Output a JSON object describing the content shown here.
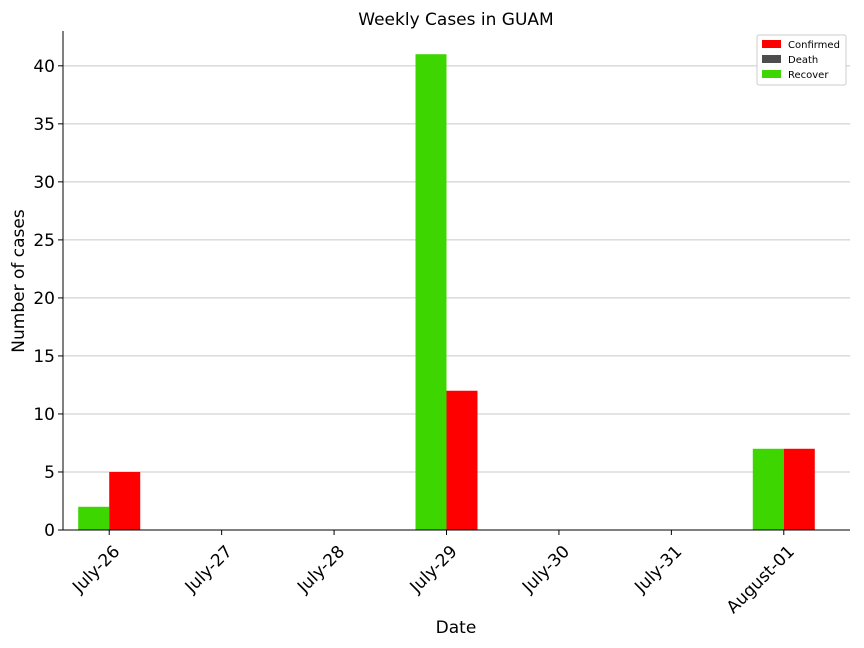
{
  "chart_data": {
    "type": "bar",
    "title": "Weekly Cases in GUAM",
    "xlabel": "Date",
    "ylabel": "Number of cases",
    "categories": [
      "July-26",
      "July-27",
      "July-28",
      "July-29",
      "July-30",
      "July-31",
      "August-01"
    ],
    "series": [
      {
        "name": "Confirmed",
        "color": "#ff0000",
        "values": [
          5,
          0,
          0,
          12,
          0,
          0,
          7
        ]
      },
      {
        "name": "Death",
        "color": "#4d4d4d",
        "values": [
          0,
          0,
          0,
          0,
          0,
          0,
          0
        ]
      },
      {
        "name": "Recover",
        "color": "#3dd600",
        "values": [
          2,
          0,
          0,
          41,
          0,
          0,
          7
        ]
      }
    ],
    "ylim": [
      0,
      43
    ],
    "yticks": [
      0,
      5,
      10,
      15,
      20,
      25,
      30,
      35,
      40
    ],
    "grid": "horizontal",
    "legend_position": "top-right"
  }
}
